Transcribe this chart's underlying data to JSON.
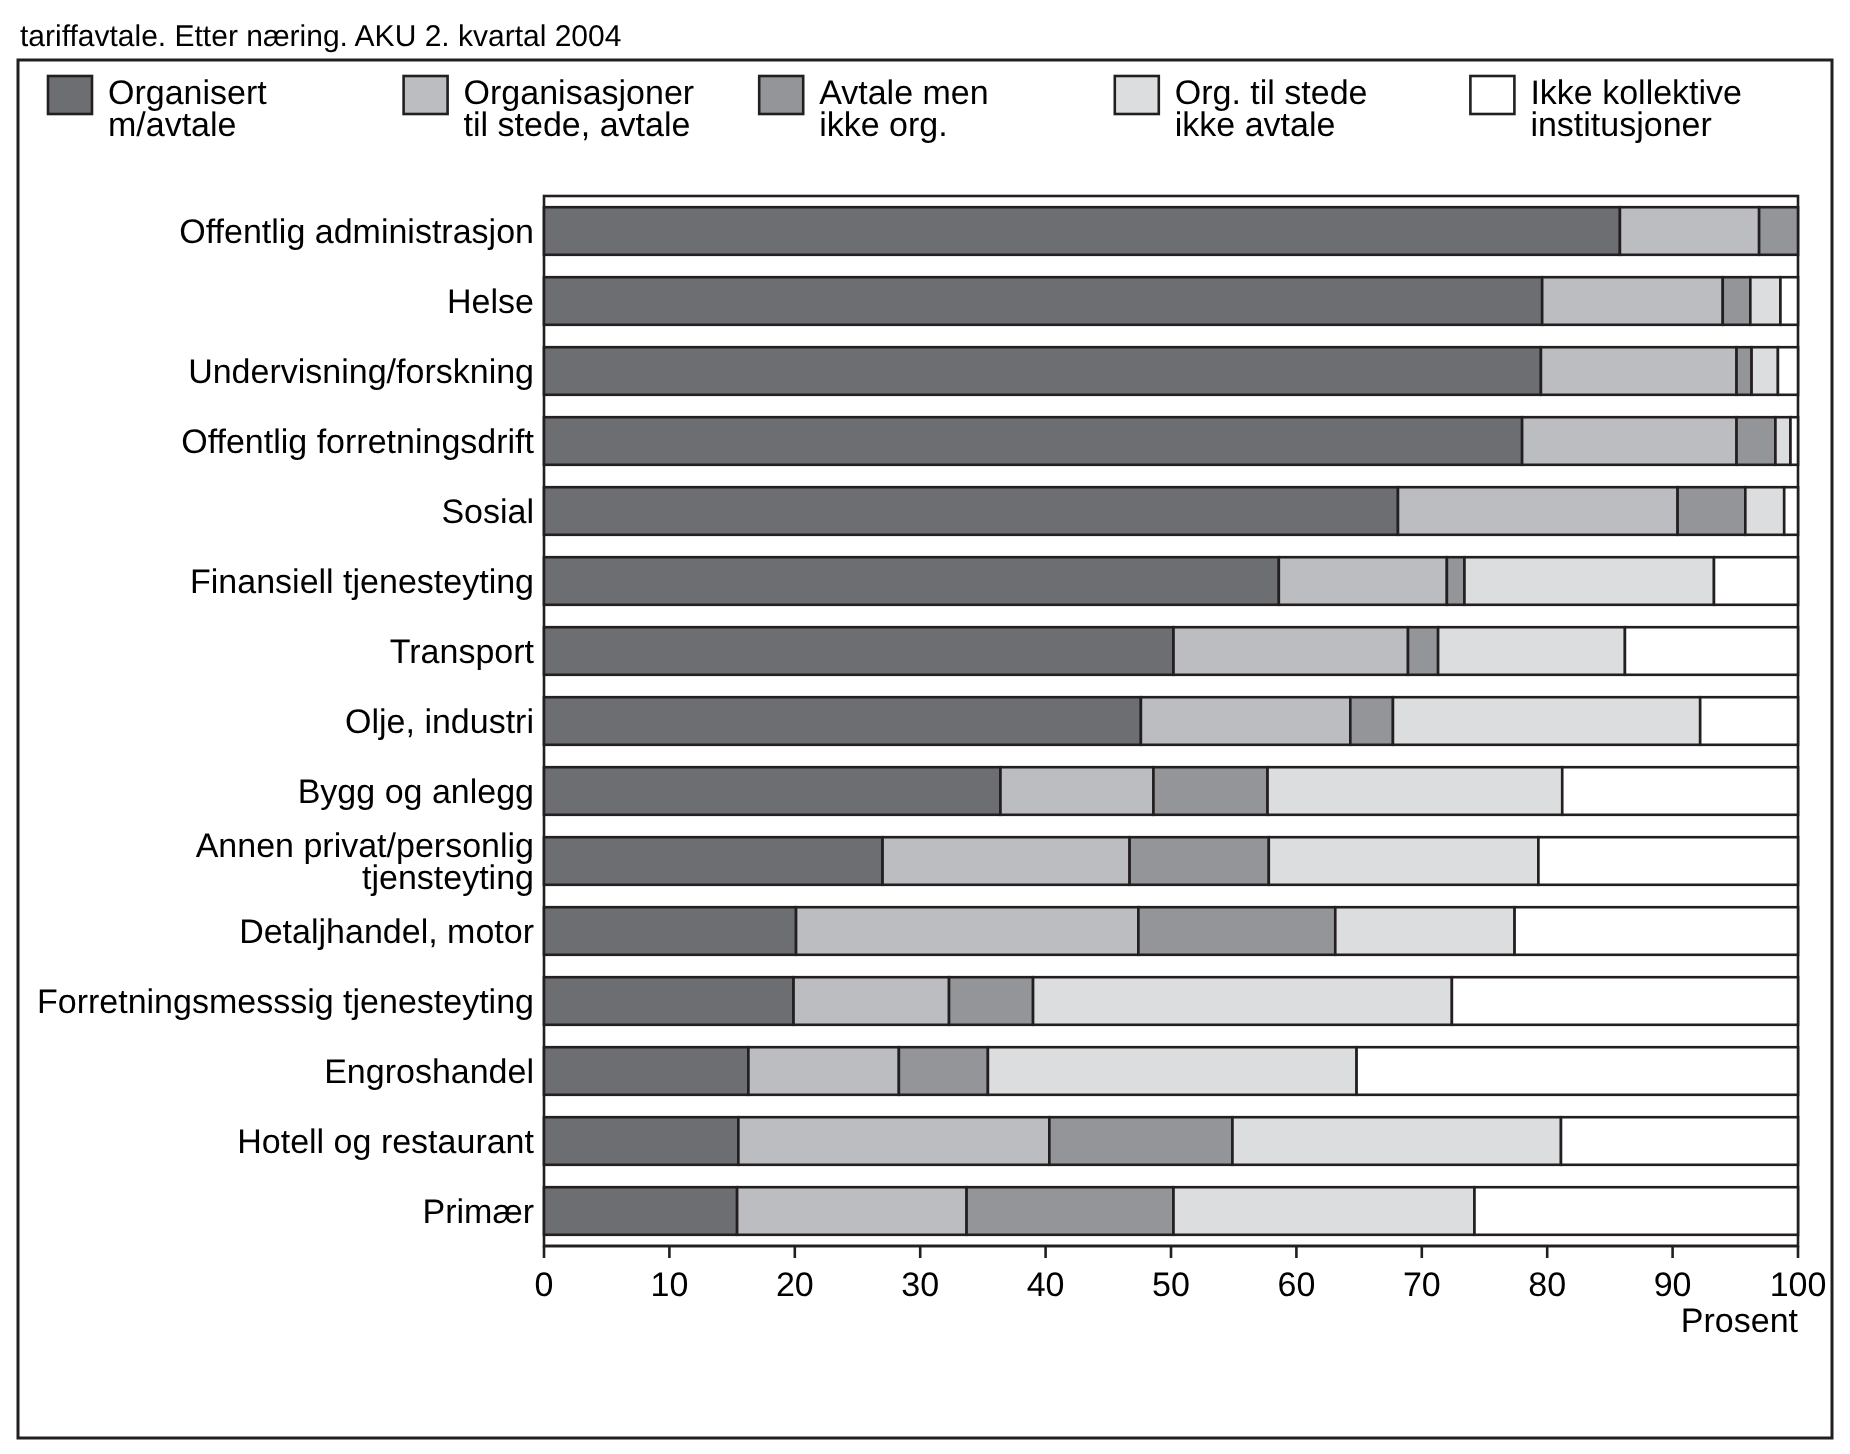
{
  "chart_data": {
    "type": "bar",
    "orientation": "horizontal",
    "stacked": true,
    "title": "tariffavtale. Etter næring. AKU 2. kvartal 2004",
    "xlabel": "Prosent",
    "legend": "top",
    "grid": false,
    "categories": [
      "Offentlig administrasjon",
      "Helse",
      "Undervisning/forskning",
      "Offentlig forretningsdrift",
      "Sosial",
      "Finansiell tjenesteyting",
      "Transport",
      "Olje, industri",
      "Bygg og anlegg",
      "Annen privat/personlig tjensteyting",
      "Detaljhandel, motor",
      "Forretningsmesssig tjenesteyting",
      "Engroshandel",
      "Hotell og restaurant",
      "Primær"
    ],
    "xlim": [
      0,
      100
    ],
    "xticks": [
      0,
      10,
      20,
      30,
      40,
      50,
      60,
      70,
      80,
      90,
      100
    ],
    "series": [
      {
        "name": "Organisert m/avtale",
        "color": "#6d6e71",
        "values": [
          85.8,
          79.6,
          79.5,
          78.0,
          68.1,
          58.6,
          50.2,
          47.6,
          36.4,
          27.0,
          20.1,
          19.9,
          16.3,
          15.5,
          15.4
        ]
      },
      {
        "name": "Organisasjoner til stede, avtale",
        "color": "#bcbdc0",
        "values": [
          11.1,
          14.4,
          15.6,
          17.1,
          22.3,
          13.4,
          18.7,
          16.7,
          12.2,
          19.7,
          27.3,
          12.4,
          12.0,
          24.8,
          18.3
        ]
      },
      {
        "name": "Avtale men ikke org.",
        "color": "#939598",
        "values": [
          3.1,
          2.2,
          1.2,
          3.1,
          5.4,
          1.4,
          2.4,
          3.4,
          9.1,
          11.1,
          15.7,
          6.7,
          7.1,
          14.6,
          16.5
        ]
      },
      {
        "name": "Org. til stede ikke avtale",
        "color": "#dcddde",
        "values": [
          0,
          2.4,
          2.1,
          1.2,
          3.1,
          19.9,
          14.9,
          24.5,
          23.5,
          21.5,
          14.3,
          33.4,
          29.4,
          26.2,
          24.0
        ]
      },
      {
        "name": "Ikke kollektive institusjoner",
        "color": "#ffffff",
        "values": [
          0,
          1.4,
          1.6,
          0.6,
          1.1,
          6.7,
          13.8,
          7.8,
          18.8,
          20.7,
          22.6,
          27.6,
          35.2,
          18.9,
          25.8
        ]
      }
    ]
  }
}
